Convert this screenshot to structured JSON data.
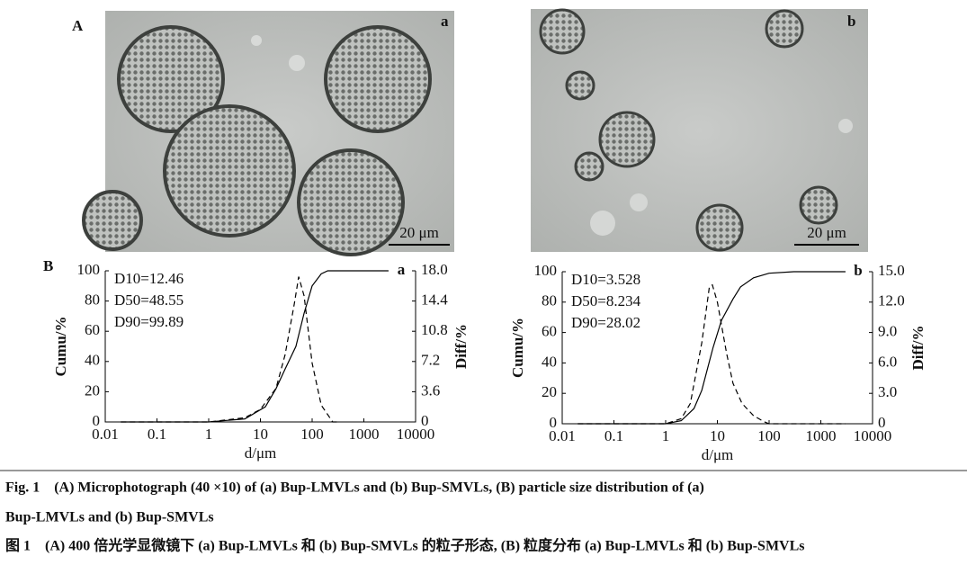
{
  "figure": {
    "panel_labels": [
      "A",
      "B"
    ],
    "micrographs": [
      {
        "label": "a",
        "scale_bar": "20 μm"
      },
      {
        "label": "b",
        "scale_bar": "20 μm"
      }
    ],
    "caption_en": [
      "Fig. 1　(A) Microphotograph (40 ×10) of (a) Bup-LMVLs and (b) Bup-SMVLs, (B) particle size distribution of (a)",
      "Bup-LMVLs and (b) Bup-SMVLs"
    ],
    "caption_zh": "图 1　(A) 400 倍光学显微镜下 (a) Bup-LMVLs 和 (b) Bup-SMVLs 的粒子形态, (B) 粒度分布 (a) Bup-LMVLs 和 (b) Bup-SMVLs"
  },
  "chart_data": [
    {
      "type": "line",
      "label": "a",
      "xlabel": "d/μm",
      "ylabel": "Cumu/%",
      "y2label": "Diff/%",
      "xscale": "log",
      "annotations": [
        "D10=12.46",
        "D50=48.55",
        "D90=99.89"
      ],
      "xlim": [
        0.01,
        10000
      ],
      "xticks": [
        0.01,
        0.1,
        1,
        10,
        100,
        1000,
        10000
      ],
      "ylim": [
        0,
        100
      ],
      "yticks": [
        0,
        20,
        40,
        60,
        80,
        100
      ],
      "y2lim": [
        0,
        18
      ],
      "y2ticks": [
        0,
        {
          "value": 3.6,
          "label": "3.6"
        },
        {
          "value": 7.2,
          "label": "7.2"
        },
        {
          "value": 10.8,
          "label": "10.8"
        },
        {
          "value": 14.4,
          "label": "14.4"
        },
        {
          "value": 18,
          "label": "18.0"
        }
      ],
      "series": [
        {
          "name": "Cumu",
          "color": "#000000",
          "dashed": false,
          "x": [
            0.02,
            1,
            5,
            12.46,
            20,
            30,
            48.55,
            70,
            99.89,
            150,
            200,
            500,
            3000
          ],
          "values": [
            0,
            0,
            2,
            10,
            22,
            35,
            50,
            72,
            90,
            98,
            100,
            100,
            100
          ]
        },
        {
          "name": "Diff",
          "color": "#000000",
          "dashed": true,
          "axis": "y2",
          "x": [
            0.02,
            1,
            5,
            10,
            20,
            30,
            45,
            55,
            70,
            100,
            150,
            250,
            300
          ],
          "values": [
            0,
            0,
            0.5,
            1.5,
            4,
            8,
            14,
            17.3,
            15,
            7,
            2,
            0,
            0
          ]
        }
      ]
    },
    {
      "type": "line",
      "label": "b",
      "xlabel": "d/μm",
      "ylabel": "Cumu/%",
      "y2label": "Diff/%",
      "xscale": "log",
      "annotations": [
        "D10=3.528",
        "D50=8.234",
        "D90=28.02"
      ],
      "xlim": [
        0.01,
        10000
      ],
      "xticks": [
        0.01,
        0.1,
        1,
        10,
        100,
        1000,
        10000
      ],
      "ylim": [
        0,
        100
      ],
      "yticks": [
        0,
        20,
        40,
        60,
        80,
        100
      ],
      "y2lim": [
        0,
        15
      ],
      "y2ticks": [
        0,
        {
          "value": 3,
          "label": "3.0"
        },
        {
          "value": 6,
          "label": "6.0"
        },
        {
          "value": 9,
          "label": "9.0"
        },
        {
          "value": 12,
          "label": "12.0"
        },
        {
          "value": 15,
          "label": "15.0"
        }
      ],
      "series": [
        {
          "name": "Cumu",
          "color": "#000000",
          "dashed": false,
          "x": [
            0.02,
            1,
            2,
            3.528,
            5,
            8.234,
            12,
            20,
            28.02,
            50,
            100,
            300,
            3000
          ],
          "values": [
            0,
            0,
            2,
            10,
            22,
            50,
            68,
            82,
            90,
            96,
            99,
            100,
            100
          ]
        },
        {
          "name": "Diff",
          "color": "#000000",
          "dashed": true,
          "axis": "y2",
          "x": [
            0.02,
            1,
            2,
            3,
            5,
            7,
            8,
            10,
            15,
            20,
            30,
            50,
            80,
            100,
            1000,
            3000
          ],
          "values": [
            0,
            0,
            0.5,
            2,
            8,
            13.5,
            13.7,
            12,
            7,
            4,
            2,
            0.8,
            0.2,
            0,
            0,
            0
          ]
        }
      ]
    }
  ]
}
